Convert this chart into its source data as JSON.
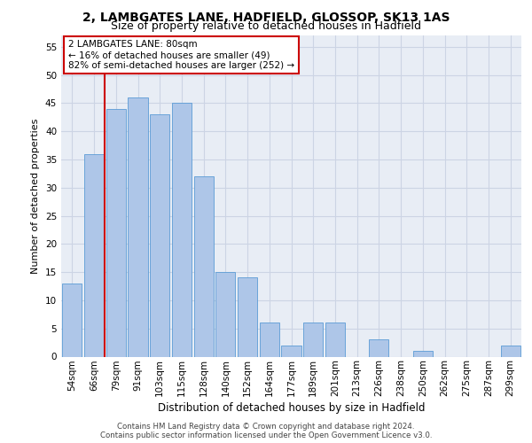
{
  "title1": "2, LAMBGATES LANE, HADFIELD, GLOSSOP, SK13 1AS",
  "title2": "Size of property relative to detached houses in Hadfield",
  "xlabel": "Distribution of detached houses by size in Hadfield",
  "ylabel": "Number of detached properties",
  "categories": [
    "54sqm",
    "66sqm",
    "79sqm",
    "91sqm",
    "103sqm",
    "115sqm",
    "128sqm",
    "140sqm",
    "152sqm",
    "164sqm",
    "177sqm",
    "189sqm",
    "201sqm",
    "213sqm",
    "226sqm",
    "238sqm",
    "250sqm",
    "262sqm",
    "275sqm",
    "287sqm",
    "299sqm"
  ],
  "values": [
    13,
    36,
    44,
    46,
    43,
    45,
    32,
    15,
    14,
    6,
    2,
    6,
    6,
    0,
    3,
    0,
    1,
    0,
    0,
    0,
    2
  ],
  "bar_color": "#aec6e8",
  "bar_edge_color": "#5b9bd5",
  "property_line_x": 1.5,
  "annotation_text": "2 LAMBGATES LANE: 80sqm\n← 16% of detached houses are smaller (49)\n82% of semi-detached houses are larger (252) →",
  "ylim": [
    0,
    57
  ],
  "yticks": [
    0,
    5,
    10,
    15,
    20,
    25,
    30,
    35,
    40,
    45,
    50,
    55
  ],
  "grid_color": "#ccd4e4",
  "background_color": "#e8edf5",
  "footer_text": "Contains HM Land Registry data © Crown copyright and database right 2024.\nContains public sector information licensed under the Open Government Licence v3.0.",
  "line_color": "#cc0000",
  "ann_box_edge": "#cc0000",
  "title1_fontsize": 10,
  "title2_fontsize": 9,
  "ylabel_fontsize": 8,
  "xlabel_fontsize": 8.5,
  "tick_fontsize": 7.5,
  "ann_fontsize": 7.5,
  "footer_fontsize": 6.2
}
